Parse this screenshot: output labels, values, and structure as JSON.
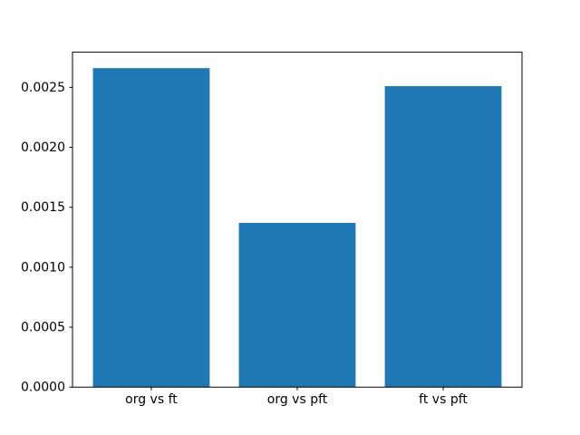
{
  "chart_data": {
    "type": "bar",
    "title": "",
    "xlabel": "",
    "ylabel": "",
    "categories": [
      "org vs ft",
      "org vs pft",
      "ft vs pft"
    ],
    "values": [
      0.00266,
      0.00137,
      0.00251
    ],
    "bar_color": "#1f77b4",
    "bar_width": 0.8,
    "xlim": [
      -0.54,
      2.54
    ],
    "ylim": [
      0,
      0.002793
    ],
    "yticks": [
      0.0,
      0.0005,
      0.001,
      0.0015,
      0.002,
      0.0025
    ],
    "ytick_labels": [
      "0.0000",
      "0.0005",
      "0.0010",
      "0.0015",
      "0.0020",
      "0.0025"
    ],
    "grid": false,
    "legend": null,
    "frame_color": "#000000",
    "background_color": "#ffffff"
  }
}
